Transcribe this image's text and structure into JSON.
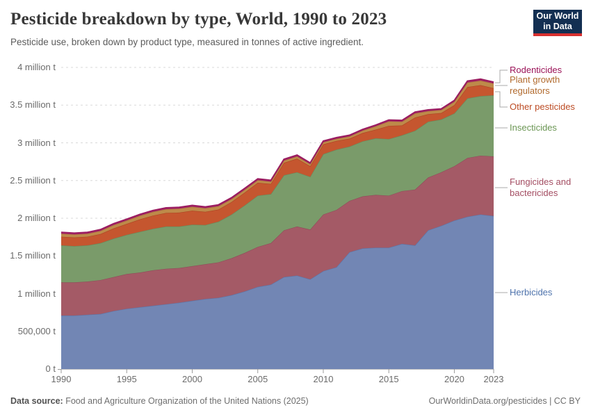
{
  "header": {
    "title": "Pesticide breakdown by type, World, 1990 to 2023",
    "subtitle": "Pesticide use, broken down by product type, measured in tonnes of active ingredient."
  },
  "logo": {
    "line1": "Our World",
    "line2": "in Data",
    "bg": "#132F52",
    "bar": "#D8302F"
  },
  "chart_data": {
    "type": "area",
    "stacked": true,
    "title": "Pesticide breakdown by type, World, 1990 to 2023",
    "unit": "tonnes of active ingredient",
    "x": [
      1990,
      1991,
      1992,
      1993,
      1994,
      1995,
      1996,
      1997,
      1998,
      1999,
      2000,
      2001,
      2002,
      2003,
      2004,
      2005,
      2006,
      2007,
      2008,
      2009,
      2010,
      2011,
      2012,
      2013,
      2014,
      2015,
      2016,
      2017,
      2018,
      2019,
      2020,
      2021,
      2022,
      2023
    ],
    "xticks": [
      1990,
      1995,
      2000,
      2005,
      2010,
      2015,
      2020,
      2023
    ],
    "ylim": [
      0,
      4000000
    ],
    "yticks": [
      {
        "v": 0,
        "label": "0 t"
      },
      {
        "v": 500000,
        "label": "500,000 t"
      },
      {
        "v": 1000000,
        "label": "1 million t"
      },
      {
        "v": 1500000,
        "label": "1.5 million t"
      },
      {
        "v": 2000000,
        "label": "2 million t"
      },
      {
        "v": 2500000,
        "label": "2.5 million t"
      },
      {
        "v": 3000000,
        "label": "3 million t"
      },
      {
        "v": 3500000,
        "label": "3.5 million t"
      },
      {
        "v": 4000000,
        "label": "4 million t"
      }
    ],
    "grid": "horizontal-dashed",
    "legend_position": "right",
    "series": [
      {
        "name": "Herbicides",
        "fill": "#7286B4",
        "stroke": "#5D73A5",
        "text": "#4E73AC",
        "values": [
          710000,
          710000,
          720000,
          730000,
          770000,
          800000,
          820000,
          840000,
          860000,
          880000,
          905000,
          930000,
          945000,
          980000,
          1030000,
          1090000,
          1120000,
          1220000,
          1240000,
          1190000,
          1300000,
          1350000,
          1550000,
          1600000,
          1610000,
          1610000,
          1660000,
          1640000,
          1840000,
          1900000,
          1970000,
          2020000,
          2050000,
          2030000
        ]
      },
      {
        "name": "Fungicides and bactericides",
        "fill": "#A45A66",
        "stroke": "#8F4D59",
        "text": "#A44E63",
        "values": [
          440000,
          440000,
          440000,
          450000,
          450000,
          460000,
          460000,
          470000,
          470000,
          460000,
          460000,
          460000,
          470000,
          490000,
          510000,
          530000,
          550000,
          620000,
          650000,
          660000,
          750000,
          760000,
          680000,
          690000,
          700000,
          690000,
          700000,
          740000,
          700000,
          710000,
          720000,
          780000,
          780000,
          790000
        ]
      },
      {
        "name": "Insecticides",
        "fill": "#7A9B6A",
        "stroke": "#68895B",
        "text": "#6B9654",
        "values": [
          490000,
          480000,
          480000,
          490000,
          510000,
          520000,
          540000,
          550000,
          560000,
          550000,
          550000,
          520000,
          540000,
          580000,
          630000,
          680000,
          650000,
          730000,
          720000,
          700000,
          800000,
          800000,
          720000,
          730000,
          750000,
          750000,
          740000,
          780000,
          740000,
          700000,
          700000,
          790000,
          790000,
          810000
        ]
      },
      {
        "name": "Other pesticides",
        "fill": "#C5562F",
        "stroke": "#AC4422",
        "text": "#BC4B23",
        "values": [
          115000,
          115000,
          115000,
          120000,
          135000,
          145000,
          165000,
          175000,
          180000,
          185000,
          185000,
          175000,
          160000,
          165000,
          170000,
          170000,
          135000,
          165000,
          180000,
          140000,
          130000,
          115000,
          105000,
          110000,
          115000,
          175000,
          130000,
          175000,
          100000,
          85000,
          110000,
          150000,
          145000,
          95000
        ]
      },
      {
        "name": "Plant growth regulators",
        "fill": "#BE8A4A",
        "stroke": "#A6763B",
        "text": "#B16A2D",
        "values": [
          40000,
          40000,
          40000,
          42000,
          45000,
          45000,
          48000,
          50000,
          50000,
          52000,
          52000,
          48000,
          45000,
          40000,
          38000,
          35000,
          30000,
          30000,
          30000,
          28000,
          28000,
          28000,
          30000,
          32000,
          45000,
          60000,
          50000,
          55000,
          40000,
          40000,
          45000,
          60000,
          60000,
          62000
        ]
      },
      {
        "name": "Rodenticides",
        "fill": "#A82765",
        "stroke": "#9A1C60",
        "text": "#9B1358",
        "values": [
          18000,
          18000,
          18000,
          18000,
          18000,
          18000,
          18000,
          18000,
          18000,
          18000,
          18000,
          18000,
          18000,
          18000,
          18000,
          18000,
          18000,
          18000,
          18000,
          16000,
          16000,
          16000,
          16000,
          16000,
          16000,
          18000,
          18000,
          18000,
          18000,
          16000,
          18000,
          20000,
          20000,
          18000
        ]
      }
    ]
  },
  "legend": [
    {
      "series": "Rodenticides",
      "label": "Rodenticides"
    },
    {
      "series": "Plant growth regulators",
      "label": "Plant growth regulators"
    },
    {
      "series": "Other pesticides",
      "label": "Other pesticides"
    },
    {
      "series": "Insecticides",
      "label": "Insecticides"
    },
    {
      "series": "Fungicides and bactericides",
      "label": "Fungicides and bactericides"
    },
    {
      "series": "Herbicides",
      "label": "Herbicides"
    }
  ],
  "footer": {
    "datasource_prefix": "Data source:",
    "datasource": " Food and Agriculture Organization of the United Nations (2025)",
    "credit": "OurWorldinData.org/pesticides | CC BY"
  }
}
